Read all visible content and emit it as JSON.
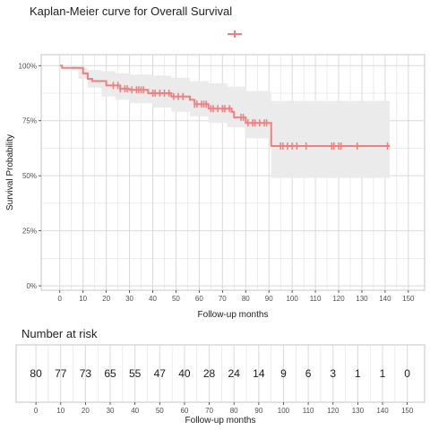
{
  "chart_data": {
    "type": "line",
    "title": "Kaplan-Meier curve for Overall Survival",
    "xlabel": "Follow-up months",
    "ylabel": "Survival Probability",
    "xlim": [
      -8,
      157
    ],
    "ylim": [
      -0.02,
      1.05
    ],
    "x_ticks": [
      0,
      10,
      20,
      30,
      40,
      50,
      60,
      70,
      80,
      90,
      100,
      110,
      120,
      130,
      140,
      150
    ],
    "x_tick_labels": [
      "0",
      "10",
      "20",
      "30",
      "40",
      "50",
      "60",
      "70",
      "80",
      "90",
      "100",
      "110",
      "120",
      "130",
      "140",
      "150"
    ],
    "y_ticks": [
      0,
      0.25,
      0.5,
      0.75,
      1.0
    ],
    "y_tick_labels": [
      "0%",
      "25%",
      "50%",
      "75%",
      "100%"
    ],
    "grid": true,
    "legend": "top-center",
    "colors": {
      "curve": "#f08080",
      "ci_band": "#ebebeb",
      "panel_bg": "#ffffff",
      "grid": "#d9d9d9",
      "frame": "#c4c4c4"
    },
    "series": [
      {
        "steps": [
          [
            0,
            1.0
          ],
          [
            1,
            0.99
          ],
          [
            10,
            0.965
          ],
          [
            12,
            0.94
          ],
          [
            14,
            0.93
          ],
          [
            20,
            0.91
          ],
          [
            26,
            0.895
          ],
          [
            30,
            0.89
          ],
          [
            38,
            0.875
          ],
          [
            48,
            0.86
          ],
          [
            56,
            0.845
          ],
          [
            58,
            0.825
          ],
          [
            64,
            0.805
          ],
          [
            74,
            0.79
          ],
          [
            75,
            0.765
          ],
          [
            80,
            0.74
          ],
          [
            88,
            0.74
          ],
          [
            91,
            0.635
          ],
          [
            142,
            0.635
          ]
        ],
        "ci_upper": [
          [
            0,
            1.0
          ],
          [
            5,
            1.0
          ],
          [
            8,
            0.99
          ],
          [
            12,
            0.98
          ],
          [
            18,
            0.975
          ],
          [
            24,
            0.965
          ],
          [
            30,
            0.96
          ],
          [
            40,
            0.955
          ],
          [
            48,
            0.945
          ],
          [
            56,
            0.93
          ],
          [
            64,
            0.92
          ],
          [
            72,
            0.905
          ],
          [
            80,
            0.885
          ],
          [
            90,
            0.88
          ],
          [
            91,
            0.84
          ],
          [
            142,
            0.84
          ]
        ],
        "ci_lower": [
          [
            0,
            1.0
          ],
          [
            5,
            0.98
          ],
          [
            8,
            0.94
          ],
          [
            12,
            0.9
          ],
          [
            18,
            0.86
          ],
          [
            24,
            0.845
          ],
          [
            30,
            0.83
          ],
          [
            40,
            0.81
          ],
          [
            48,
            0.79
          ],
          [
            56,
            0.77
          ],
          [
            64,
            0.74
          ],
          [
            72,
            0.72
          ],
          [
            80,
            0.67
          ],
          [
            90,
            0.64
          ],
          [
            91,
            0.49
          ],
          [
            142,
            0.49
          ]
        ],
        "censor_times": [
          23,
          25,
          26,
          28,
          29,
          31,
          33,
          34,
          35,
          36,
          40,
          41,
          43,
          45,
          47,
          49,
          51,
          53,
          58,
          59,
          61,
          62,
          63,
          65,
          66,
          68,
          70,
          71,
          73,
          78,
          79,
          81,
          83,
          84,
          86,
          88,
          89,
          95,
          96,
          98,
          100,
          102,
          106,
          117,
          118,
          120,
          121,
          128,
          141
        ]
      }
    ],
    "risk_table": {
      "title": "Number at risk",
      "xlabel": "Follow-up months",
      "times": [
        0,
        10,
        20,
        30,
        40,
        50,
        60,
        70,
        80,
        90,
        100,
        110,
        120,
        130,
        140,
        150
      ],
      "counts": [
        "80",
        "77",
        "73",
        "65",
        "55",
        "47",
        "40",
        "28",
        "24",
        "14",
        "9",
        "6",
        "3",
        "1",
        "1",
        "0"
      ],
      "tick_labels": [
        "0",
        "10",
        "20",
        "30",
        "40",
        "50",
        "60",
        "70",
        "80",
        "90",
        "100",
        "110",
        "120",
        "130",
        "140",
        "150"
      ]
    }
  }
}
